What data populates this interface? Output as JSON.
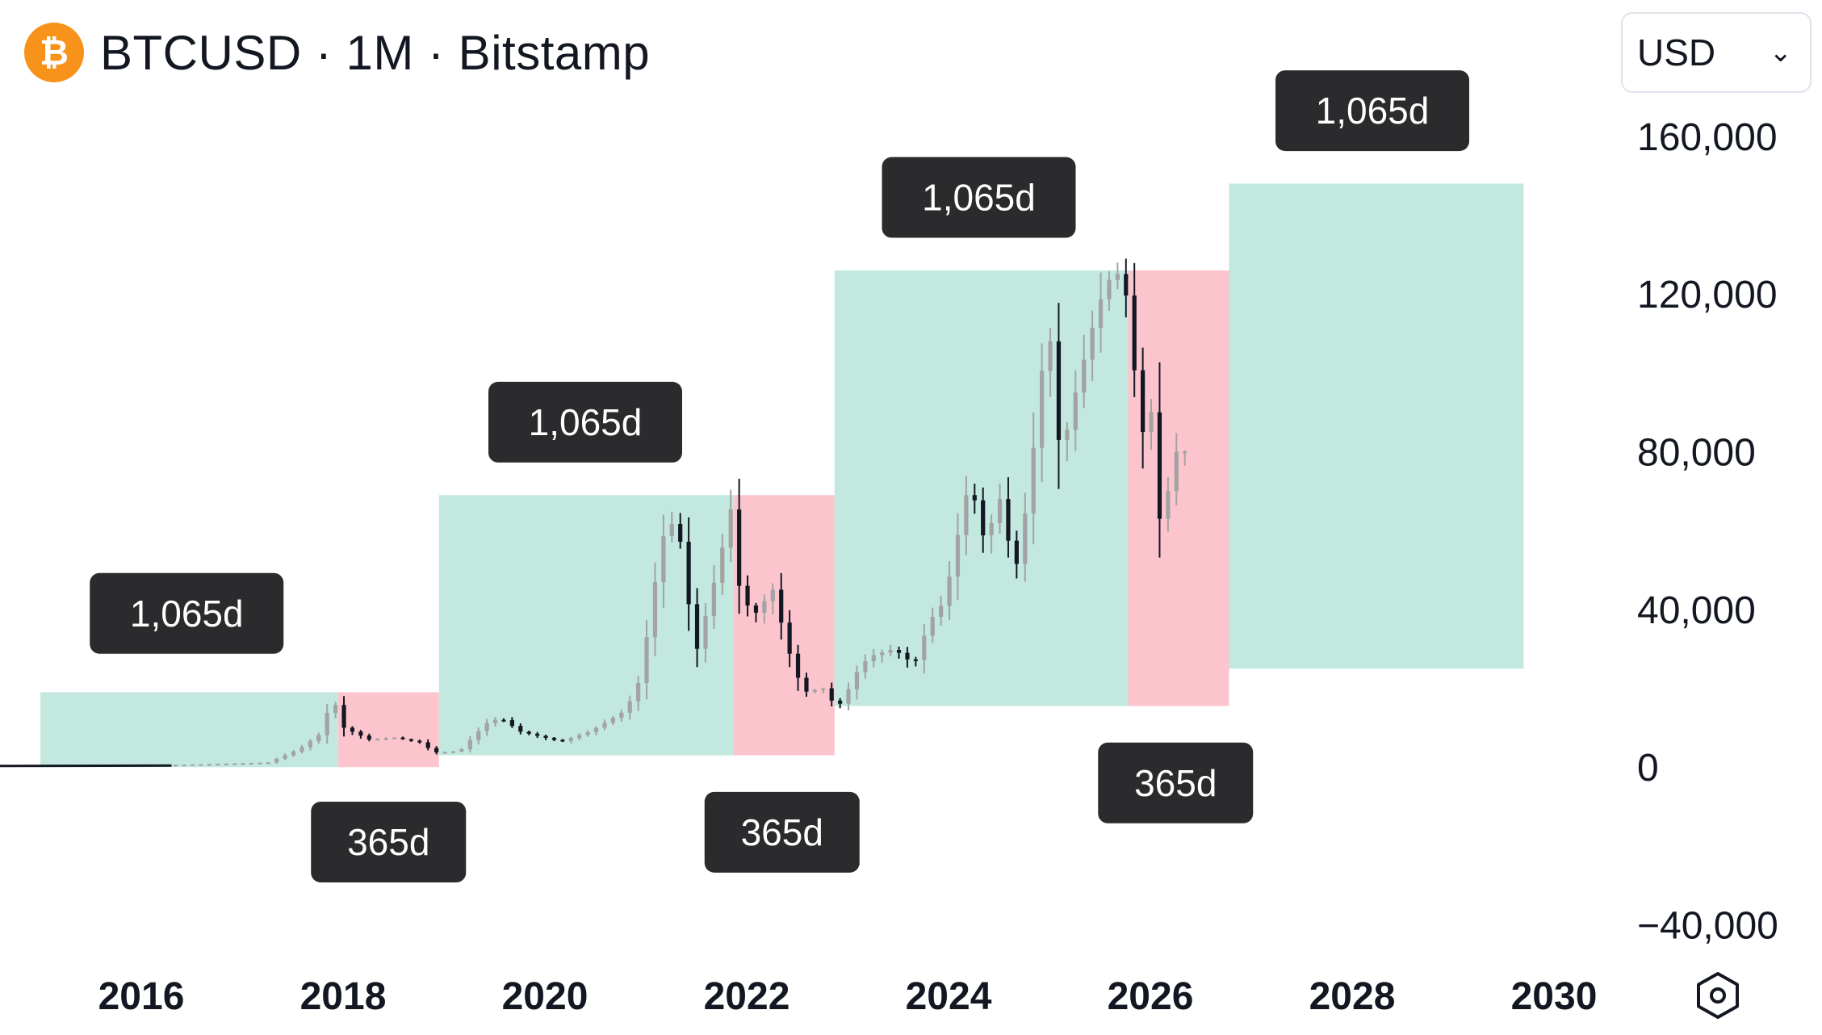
{
  "header": {
    "symbol_icon": "bitcoin-icon",
    "title": "BTCUSD · 1M · Bitstamp"
  },
  "currency": {
    "selected": "USD",
    "icon": "chevron-down-icon"
  },
  "settings": {
    "icon": "settings-hexagon-icon"
  },
  "chart_data": {
    "type": "candlestick",
    "title": "BTCUSD · 1M · Bitstamp",
    "x_axis": {
      "ticks": [
        "2016",
        "2018",
        "2020",
        "2022",
        "2024",
        "2026",
        "2028",
        "2030"
      ],
      "range": [
        2014.6,
        2030.6
      ]
    },
    "y_axis": {
      "ticks": [
        "160,000",
        "120,000",
        "80,000",
        "40,000",
        "0",
        "−40,000"
      ],
      "range": [
        -45000,
        170000
      ]
    },
    "colors": {
      "up": "#a3a3a3",
      "down": "#131722",
      "range_green": "#c2e8df",
      "range_red": "#fcc5ce",
      "label_bg": "#2b2b2e",
      "label_text": "#ffffff"
    },
    "grid": false,
    "price_path": [
      [
        2014.6,
        350
      ],
      [
        2015.0,
        250
      ],
      [
        2015.5,
        240
      ],
      [
        2016.0,
        380
      ],
      [
        2016.5,
        650
      ],
      [
        2017.0,
        970
      ],
      [
        2017.3,
        1200
      ],
      [
        2017.6,
        4500
      ],
      [
        2017.85,
        9000
      ],
      [
        2017.92,
        19000
      ],
      [
        2018.05,
        10000
      ],
      [
        2018.3,
        7000
      ],
      [
        2018.55,
        7500
      ],
      [
        2018.8,
        6300
      ],
      [
        2018.95,
        3700
      ],
      [
        2019.2,
        4100
      ],
      [
        2019.45,
        11000
      ],
      [
        2019.6,
        12500
      ],
      [
        2019.8,
        9000
      ],
      [
        2020.2,
        6500
      ],
      [
        2020.5,
        9200
      ],
      [
        2020.8,
        13800
      ],
      [
        2020.95,
        19000
      ],
      [
        2021.05,
        33000
      ],
      [
        2021.2,
        58000
      ],
      [
        2021.35,
        63500
      ],
      [
        2021.5,
        35000
      ],
      [
        2021.55,
        30000
      ],
      [
        2021.7,
        45000
      ],
      [
        2021.85,
        61000
      ],
      [
        2021.87,
        69000
      ],
      [
        2021.95,
        47000
      ],
      [
        2022.1,
        38000
      ],
      [
        2022.3,
        45000
      ],
      [
        2022.45,
        30000
      ],
      [
        2022.6,
        19000
      ],
      [
        2022.8,
        20000
      ],
      [
        2022.92,
        15500
      ],
      [
        2023.0,
        16500
      ],
      [
        2023.1,
        23000
      ],
      [
        2023.25,
        28000
      ],
      [
        2023.5,
        30000
      ],
      [
        2023.7,
        26000
      ],
      [
        2023.85,
        37000
      ],
      [
        2024.0,
        42000
      ],
      [
        2024.15,
        61000
      ],
      [
        2024.25,
        73000
      ],
      [
        2024.4,
        57000
      ],
      [
        2024.55,
        68000
      ],
      [
        2024.7,
        49000
      ],
      [
        2024.85,
        72000
      ],
      [
        2024.95,
        99000
      ],
      [
        2025.05,
        108000
      ],
      [
        2025.15,
        78000
      ],
      [
        2025.3,
        95000
      ],
      [
        2025.45,
        110000
      ],
      [
        2025.6,
        123000
      ],
      [
        2025.77,
        126000
      ],
      [
        2025.85,
        109000
      ],
      [
        2025.95,
        84000
      ],
      [
        2026.05,
        90000
      ],
      [
        2026.12,
        62000
      ],
      [
        2026.2,
        68000
      ],
      [
        2026.3,
        80000
      ]
    ],
    "ranges": [
      {
        "kind": "green",
        "x_start": 2015.0,
        "x_end": 2017.95,
        "y_low": 0,
        "y_high": 19000
      },
      {
        "kind": "red",
        "x_start": 2017.95,
        "x_end": 2018.95,
        "y_low": 0,
        "y_high": 19000
      },
      {
        "kind": "green",
        "x_start": 2018.95,
        "x_end": 2021.87,
        "y_low": 3000,
        "y_high": 69000
      },
      {
        "kind": "red",
        "x_start": 2021.87,
        "x_end": 2022.87,
        "y_low": 3000,
        "y_high": 69000
      },
      {
        "kind": "green",
        "x_start": 2022.87,
        "x_end": 2025.78,
        "y_low": 15500,
        "y_high": 126000
      },
      {
        "kind": "red",
        "x_start": 2025.78,
        "x_end": 2026.78,
        "y_low": 15500,
        "y_high": 126000
      },
      {
        "kind": "green",
        "x_start": 2026.78,
        "x_end": 2029.7,
        "y_low": 25000,
        "y_high": 148000
      }
    ],
    "labels": [
      {
        "text": "1,065d",
        "x": 2016.45,
        "y": 39000
      },
      {
        "text": "365d",
        "x": 2018.45,
        "y": -19000
      },
      {
        "text": "1,065d",
        "x": 2020.4,
        "y": 87500
      },
      {
        "text": "365d",
        "x": 2022.35,
        "y": -16500
      },
      {
        "text": "1,065d",
        "x": 2024.3,
        "y": 144500
      },
      {
        "text": "365d",
        "x": 2026.25,
        "y": -4000
      },
      {
        "text": "1,065d",
        "x": 2028.2,
        "y": 166500
      }
    ]
  }
}
